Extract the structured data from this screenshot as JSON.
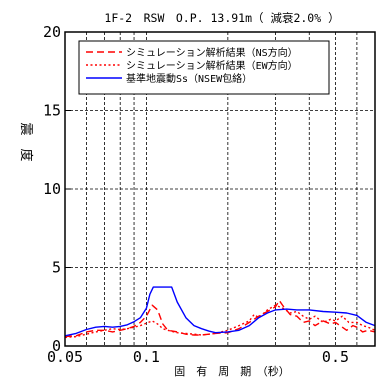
{
  "chart_data": {
    "type": "line",
    "title": "1F-2　RSW　O.P. 13.91m（ 減衰2.0% ）",
    "ylabel": "震　度",
    "xlabel": "固　有　周　期　（秒）",
    "x_scale": "log",
    "xlim": [
      0.05,
      0.7
    ],
    "ylim": [
      0,
      20
    ],
    "grid": true,
    "legend_position": "top",
    "y_ticks": [
      "0",
      "5",
      "10",
      "15",
      "20"
    ],
    "x_ticks": [
      {
        "value": 0.05,
        "label": "0.05"
      },
      {
        "value": 0.1,
        "label": "0.1"
      },
      {
        "value": 0.5,
        "label": "0.5"
      }
    ],
    "series": [
      {
        "name": "シミュレーション解析結果（NS方向）",
        "color": "#ff0000",
        "dash": "dashed",
        "points": [
          [
            0.05,
            0.6
          ],
          [
            0.055,
            0.65
          ],
          [
            0.06,
            0.9
          ],
          [
            0.065,
            1.0
          ],
          [
            0.07,
            1.0
          ],
          [
            0.075,
            0.9
          ],
          [
            0.08,
            1.0
          ],
          [
            0.085,
            1.1
          ],
          [
            0.09,
            1.25
          ],
          [
            0.095,
            1.5
          ],
          [
            0.1,
            1.9
          ],
          [
            0.105,
            2.6
          ],
          [
            0.11,
            2.3
          ],
          [
            0.115,
            1.4
          ],
          [
            0.12,
            1.0
          ],
          [
            0.13,
            0.9
          ],
          [
            0.14,
            0.75
          ],
          [
            0.15,
            0.7
          ],
          [
            0.16,
            0.7
          ],
          [
            0.17,
            0.75
          ],
          [
            0.18,
            0.8
          ],
          [
            0.2,
            0.85
          ],
          [
            0.22,
            1.1
          ],
          [
            0.24,
            1.5
          ],
          [
            0.26,
            1.9
          ],
          [
            0.28,
            2.2
          ],
          [
            0.3,
            2.5
          ],
          [
            0.31,
            2.9
          ],
          [
            0.32,
            2.55
          ],
          [
            0.34,
            2.0
          ],
          [
            0.36,
            1.9
          ],
          [
            0.38,
            1.5
          ],
          [
            0.4,
            1.6
          ],
          [
            0.42,
            1.3
          ],
          [
            0.45,
            1.6
          ],
          [
            0.48,
            1.4
          ],
          [
            0.5,
            1.5
          ],
          [
            0.53,
            1.2
          ],
          [
            0.55,
            1.0
          ],
          [
            0.58,
            1.3
          ],
          [
            0.6,
            1.2
          ],
          [
            0.63,
            0.9
          ],
          [
            0.66,
            1.0
          ],
          [
            0.7,
            0.9
          ]
        ]
      },
      {
        "name": "シミュレーション解析結果（EW方向）",
        "color": "#ff0000",
        "dash": "dotted",
        "points": [
          [
            0.05,
            0.55
          ],
          [
            0.055,
            0.6
          ],
          [
            0.06,
            0.75
          ],
          [
            0.065,
            0.9
          ],
          [
            0.07,
            1.0
          ],
          [
            0.075,
            1.1
          ],
          [
            0.08,
            1.05
          ],
          [
            0.085,
            1.1
          ],
          [
            0.09,
            1.2
          ],
          [
            0.095,
            1.3
          ],
          [
            0.1,
            1.45
          ],
          [
            0.105,
            1.6
          ],
          [
            0.11,
            1.4
          ],
          [
            0.115,
            1.1
          ],
          [
            0.12,
            1.0
          ],
          [
            0.13,
            0.85
          ],
          [
            0.14,
            0.8
          ],
          [
            0.15,
            0.75
          ],
          [
            0.16,
            0.7
          ],
          [
            0.17,
            0.75
          ],
          [
            0.18,
            0.8
          ],
          [
            0.2,
            1.0
          ],
          [
            0.22,
            1.3
          ],
          [
            0.24,
            1.6
          ],
          [
            0.25,
            2.0
          ],
          [
            0.26,
            1.8
          ],
          [
            0.28,
            2.3
          ],
          [
            0.3,
            2.6
          ],
          [
            0.32,
            2.4
          ],
          [
            0.34,
            2.1
          ],
          [
            0.36,
            2.2
          ],
          [
            0.38,
            1.9
          ],
          [
            0.4,
            1.7
          ],
          [
            0.42,
            1.9
          ],
          [
            0.45,
            1.5
          ],
          [
            0.48,
            1.7
          ],
          [
            0.5,
            1.6
          ],
          [
            0.53,
            1.9
          ],
          [
            0.56,
            1.5
          ],
          [
            0.6,
            1.5
          ],
          [
            0.63,
            1.3
          ],
          [
            0.66,
            1.2
          ],
          [
            0.7,
            1.0
          ]
        ]
      },
      {
        "name": "基準地震動Ss（NSEW包絡）",
        "color": "#0000ff",
        "dash": "solid",
        "points": [
          [
            0.05,
            0.65
          ],
          [
            0.055,
            0.8
          ],
          [
            0.06,
            1.05
          ],
          [
            0.065,
            1.2
          ],
          [
            0.07,
            1.25
          ],
          [
            0.075,
            1.2
          ],
          [
            0.08,
            1.25
          ],
          [
            0.085,
            1.35
          ],
          [
            0.09,
            1.55
          ],
          [
            0.095,
            1.8
          ],
          [
            0.1,
            2.4
          ],
          [
            0.103,
            3.3
          ],
          [
            0.106,
            3.75
          ],
          [
            0.12,
            3.75
          ],
          [
            0.124,
            3.75
          ],
          [
            0.13,
            2.8
          ],
          [
            0.14,
            1.8
          ],
          [
            0.15,
            1.3
          ],
          [
            0.16,
            1.1
          ],
          [
            0.17,
            0.95
          ],
          [
            0.18,
            0.85
          ],
          [
            0.2,
            0.9
          ],
          [
            0.22,
            1.0
          ],
          [
            0.24,
            1.3
          ],
          [
            0.26,
            1.8
          ],
          [
            0.28,
            2.1
          ],
          [
            0.3,
            2.3
          ],
          [
            0.33,
            2.35
          ],
          [
            0.36,
            2.3
          ],
          [
            0.4,
            2.3
          ],
          [
            0.45,
            2.2
          ],
          [
            0.5,
            2.15
          ],
          [
            0.55,
            2.1
          ],
          [
            0.6,
            1.95
          ],
          [
            0.65,
            1.5
          ],
          [
            0.7,
            1.3
          ]
        ]
      }
    ]
  }
}
